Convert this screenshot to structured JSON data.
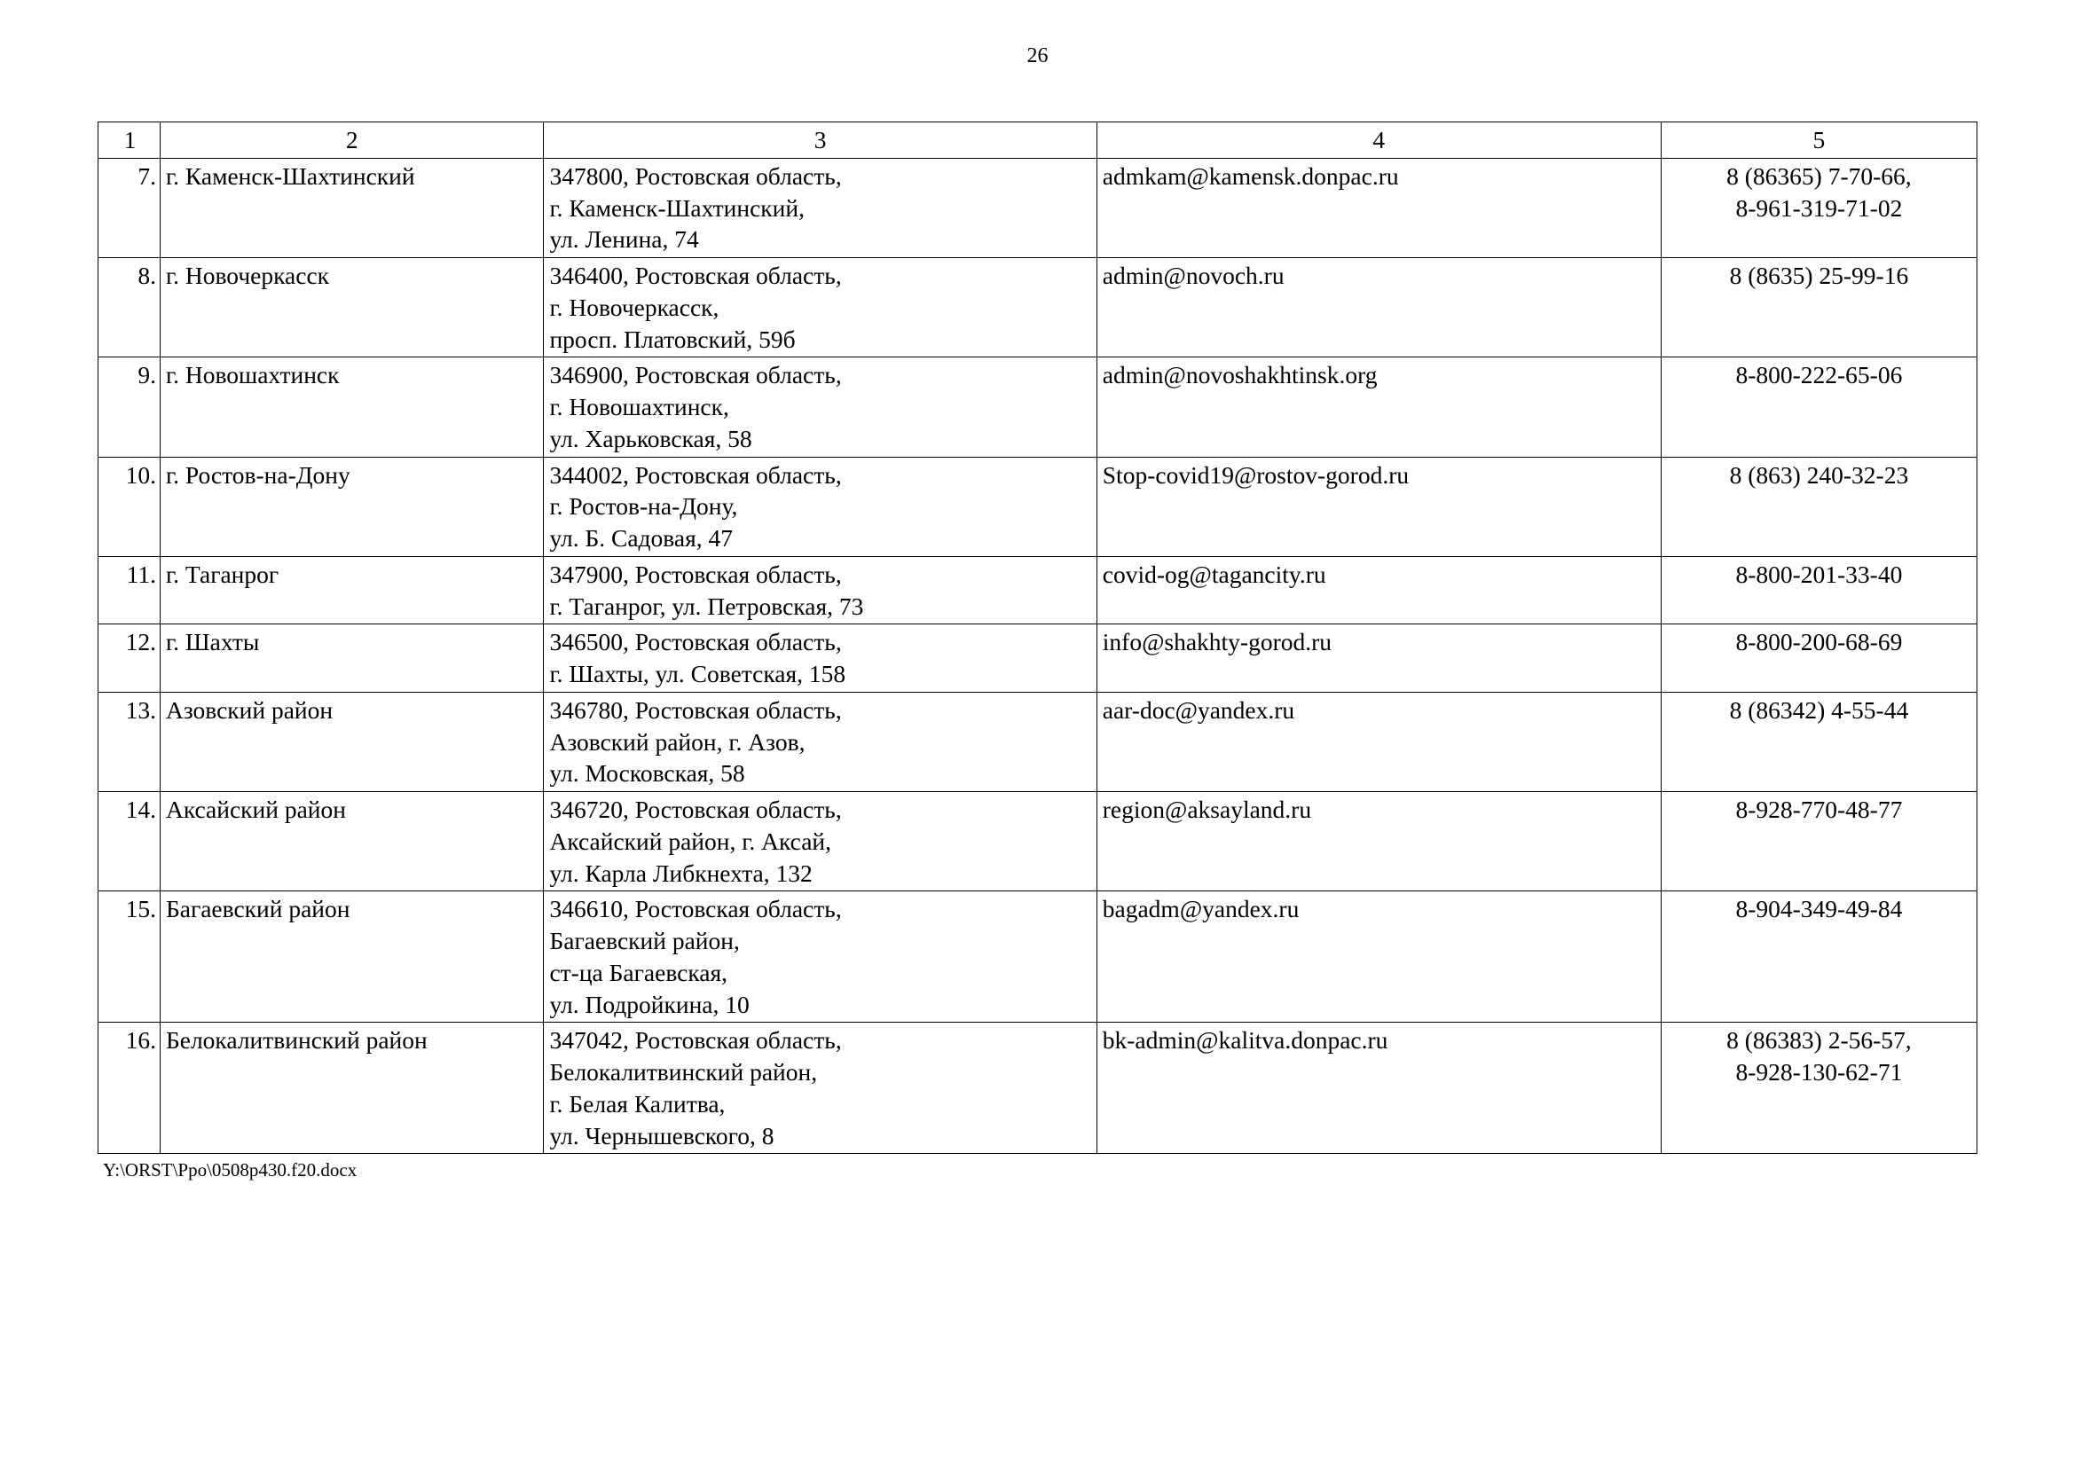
{
  "page_number": "26",
  "header_row": [
    "1",
    "2",
    "3",
    "4",
    "5"
  ],
  "rows": [
    {
      "num": "7.",
      "name": "г. Каменск-Шахтинский",
      "addr": "347800, Ростовская область,\nг. Каменск-Шахтинский,\nул. Ленина, 74",
      "email": "admkam@kamensk.donpac.ru",
      "phone": "8 (86365) 7-70-66,\n8-961-319-71-02"
    },
    {
      "num": "8.",
      "name": "г. Новочеркасск",
      "addr": "346400, Ростовская область,\nг. Новочеркасск,\nпросп. Платовский, 59б",
      "email": "admin@novoch.ru",
      "phone": "8 (8635) 25-99-16"
    },
    {
      "num": "9.",
      "name": "г. Новошахтинск",
      "addr": "346900, Ростовская область,\nг. Новошахтинск,\nул. Харьковская, 58",
      "email": "admin@novoshakhtinsk.org",
      "phone": "8-800-222-65-06"
    },
    {
      "num": "10.",
      "name": "г. Ростов-на-Дону",
      "addr": "344002, Ростовская область,\nг. Ростов-на-Дону,\nул. Б. Садовая, 47",
      "email": "Stop-covid19@rostov-gorod.ru",
      "phone": "8 (863) 240-32-23"
    },
    {
      "num": "11.",
      "name": "г. Таганрог",
      "addr": "347900, Ростовская область,\nг. Таганрог, ул. Петровская, 73",
      "email": "covid-og@tagancity.ru",
      "phone": "8-800-201-33-40"
    },
    {
      "num": "12.",
      "name": "г. Шахты",
      "addr": "346500, Ростовская область,\nг. Шахты, ул. Советская, 158",
      "email": "info@shakhty-gorod.ru",
      "phone": "8-800-200-68-69"
    },
    {
      "num": "13.",
      "name": "Азовский район",
      "addr": "346780, Ростовская область,\nАзовский район, г. Азов,\nул. Московская, 58",
      "email": "aar-doc@yandex.ru",
      "phone": "8 (86342) 4-55-44"
    },
    {
      "num": "14.",
      "name": "Аксайский район",
      "addr": "346720, Ростовская область,\nАксайский район, г. Аксай,\nул. Карла Либкнехта, 132",
      "email": "region@aksayland.ru",
      "phone": "8-928-770-48-77"
    },
    {
      "num": "15.",
      "name": "Багаевский район",
      "addr": "346610, Ростовская область,\nБагаевский район,\nст-ца Багаевская,\nул. Подройкина, 10",
      "email": "bagadm@yandex.ru",
      "phone": "8-904-349-49-84"
    },
    {
      "num": "16.",
      "name": "Белокалитвинский район",
      "addr": "347042, Ростовская область,\nБелокалитвинский район,\nг. Белая Калитва,\nул. Чернышевского, 8",
      "email": "bk-admin@kalitva.donpac.ru",
      "phone": "8 (86383) 2-56-57,\n8-928-130-62-71"
    }
  ],
  "footer": "Y:\\ORST\\Ppo\\0508p430.f20.docx"
}
